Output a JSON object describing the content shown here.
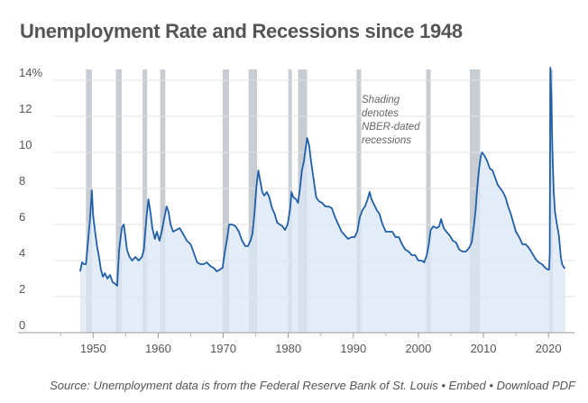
{
  "chart_data": {
    "type": "area",
    "title": "Unemployment Rate and Recessions since 1948",
    "xlabel": "",
    "ylabel": "",
    "xlim": [
      1944,
      2024
    ],
    "ylim": [
      0,
      14.6
    ],
    "x_ticks": [
      1950,
      1960,
      1970,
      1980,
      1990,
      2000,
      2010,
      2020
    ],
    "y_ticks": [
      {
        "value": 0,
        "label": "0"
      },
      {
        "value": 2,
        "label": "2"
      },
      {
        "value": 4,
        "label": "4"
      },
      {
        "value": 6,
        "label": "6"
      },
      {
        "value": 8,
        "label": "8"
      },
      {
        "value": 10,
        "label": "10"
      },
      {
        "value": 12,
        "label": "12"
      },
      {
        "value": 14,
        "label": "14%"
      }
    ],
    "grid": "horizontal",
    "series": [
      {
        "color": "#1f5fa8",
        "fill": "#dbe7f4",
        "points": [
          [
            1948.0,
            3.4
          ],
          [
            1948.3,
            3.9
          ],
          [
            1948.6,
            3.8
          ],
          [
            1948.9,
            3.8
          ],
          [
            1949.2,
            5.0
          ],
          [
            1949.5,
            6.2
          ],
          [
            1949.8,
            7.9
          ],
          [
            1950.0,
            6.5
          ],
          [
            1950.3,
            5.6
          ],
          [
            1950.6,
            4.8
          ],
          [
            1950.9,
            4.2
          ],
          [
            1951.2,
            3.5
          ],
          [
            1951.5,
            3.1
          ],
          [
            1951.8,
            3.3
          ],
          [
            1952.2,
            3.0
          ],
          [
            1952.6,
            3.2
          ],
          [
            1953.0,
            2.8
          ],
          [
            1953.4,
            2.7
          ],
          [
            1953.7,
            2.6
          ],
          [
            1954.0,
            4.6
          ],
          [
            1954.4,
            5.8
          ],
          [
            1954.7,
            6.0
          ],
          [
            1954.9,
            5.5
          ],
          [
            1955.2,
            4.6
          ],
          [
            1955.6,
            4.2
          ],
          [
            1956.0,
            4.0
          ],
          [
            1956.5,
            4.2
          ],
          [
            1957.0,
            4.0
          ],
          [
            1957.5,
            4.2
          ],
          [
            1957.8,
            4.6
          ],
          [
            1958.2,
            6.4
          ],
          [
            1958.5,
            7.4
          ],
          [
            1958.8,
            6.7
          ],
          [
            1959.1,
            5.8
          ],
          [
            1959.5,
            5.2
          ],
          [
            1959.8,
            5.6
          ],
          [
            1960.2,
            5.1
          ],
          [
            1960.6,
            5.7
          ],
          [
            1960.9,
            6.3
          ],
          [
            1961.3,
            7.0
          ],
          [
            1961.6,
            6.7
          ],
          [
            1961.9,
            6.0
          ],
          [
            1962.3,
            5.6
          ],
          [
            1962.8,
            5.7
          ],
          [
            1963.3,
            5.8
          ],
          [
            1963.8,
            5.5
          ],
          [
            1964.4,
            5.1
          ],
          [
            1965.0,
            4.9
          ],
          [
            1965.5,
            4.4
          ],
          [
            1966.0,
            3.9
          ],
          [
            1966.5,
            3.8
          ],
          [
            1967.0,
            3.8
          ],
          [
            1967.5,
            3.9
          ],
          [
            1968.0,
            3.7
          ],
          [
            1968.5,
            3.6
          ],
          [
            1969.0,
            3.4
          ],
          [
            1969.5,
            3.5
          ],
          [
            1969.9,
            3.6
          ],
          [
            1970.3,
            4.6
          ],
          [
            1970.6,
            5.2
          ],
          [
            1970.9,
            6.0
          ],
          [
            1971.4,
            6.0
          ],
          [
            1971.9,
            5.9
          ],
          [
            1972.4,
            5.6
          ],
          [
            1972.9,
            5.1
          ],
          [
            1973.4,
            4.8
          ],
          [
            1973.8,
            4.8
          ],
          [
            1974.2,
            5.1
          ],
          [
            1974.5,
            5.5
          ],
          [
            1974.8,
            6.6
          ],
          [
            1975.1,
            8.1
          ],
          [
            1975.4,
            9.0
          ],
          [
            1975.7,
            8.4
          ],
          [
            1976.0,
            7.8
          ],
          [
            1976.3,
            7.6
          ],
          [
            1976.7,
            7.8
          ],
          [
            1977.1,
            7.5
          ],
          [
            1977.5,
            6.9
          ],
          [
            1977.9,
            6.6
          ],
          [
            1978.3,
            6.1
          ],
          [
            1978.7,
            6.0
          ],
          [
            1979.1,
            5.9
          ],
          [
            1979.5,
            5.7
          ],
          [
            1979.9,
            6.0
          ],
          [
            1980.3,
            6.9
          ],
          [
            1980.5,
            7.8
          ],
          [
            1980.8,
            7.5
          ],
          [
            1981.2,
            7.4
          ],
          [
            1981.5,
            7.2
          ],
          [
            1981.8,
            8.0
          ],
          [
            1982.1,
            9.0
          ],
          [
            1982.4,
            9.5
          ],
          [
            1982.7,
            10.3
          ],
          [
            1982.9,
            10.8
          ],
          [
            1983.2,
            10.4
          ],
          [
            1983.5,
            9.5
          ],
          [
            1983.9,
            8.5
          ],
          [
            1984.3,
            7.5
          ],
          [
            1984.7,
            7.3
          ],
          [
            1985.2,
            7.2
          ],
          [
            1985.7,
            7.0
          ],
          [
            1986.2,
            7.0
          ],
          [
            1986.7,
            6.9
          ],
          [
            1987.2,
            6.4
          ],
          [
            1987.7,
            6.0
          ],
          [
            1988.2,
            5.6
          ],
          [
            1988.7,
            5.4
          ],
          [
            1989.2,
            5.2
          ],
          [
            1989.7,
            5.3
          ],
          [
            1990.2,
            5.3
          ],
          [
            1990.6,
            5.6
          ],
          [
            1991.0,
            6.4
          ],
          [
            1991.4,
            6.8
          ],
          [
            1991.8,
            7.0
          ],
          [
            1992.2,
            7.4
          ],
          [
            1992.5,
            7.8
          ],
          [
            1992.8,
            7.4
          ],
          [
            1993.2,
            7.1
          ],
          [
            1993.6,
            6.8
          ],
          [
            1994.0,
            6.6
          ],
          [
            1994.5,
            6.0
          ],
          [
            1995.0,
            5.6
          ],
          [
            1995.5,
            5.6
          ],
          [
            1996.0,
            5.6
          ],
          [
            1996.5,
            5.3
          ],
          [
            1997.0,
            5.3
          ],
          [
            1997.5,
            4.9
          ],
          [
            1998.0,
            4.6
          ],
          [
            1998.5,
            4.5
          ],
          [
            1999.0,
            4.3
          ],
          [
            1999.5,
            4.3
          ],
          [
            2000.0,
            4.0
          ],
          [
            2000.5,
            4.0
          ],
          [
            2000.9,
            3.9
          ],
          [
            2001.3,
            4.3
          ],
          [
            2001.6,
            4.9
          ],
          [
            2001.9,
            5.7
          ],
          [
            2002.3,
            5.9
          ],
          [
            2002.8,
            5.8
          ],
          [
            2003.2,
            5.9
          ],
          [
            2003.5,
            6.3
          ],
          [
            2003.9,
            5.8
          ],
          [
            2004.3,
            5.6
          ],
          [
            2004.8,
            5.4
          ],
          [
            2005.3,
            5.1
          ],
          [
            2005.8,
            5.0
          ],
          [
            2006.3,
            4.6
          ],
          [
            2006.8,
            4.5
          ],
          [
            2007.3,
            4.5
          ],
          [
            2007.8,
            4.7
          ],
          [
            2008.2,
            5.0
          ],
          [
            2008.5,
            5.8
          ],
          [
            2008.8,
            6.8
          ],
          [
            2009.0,
            7.8
          ],
          [
            2009.3,
            9.0
          ],
          [
            2009.6,
            9.8
          ],
          [
            2009.8,
            10.0
          ],
          [
            2010.2,
            9.8
          ],
          [
            2010.6,
            9.5
          ],
          [
            2011.0,
            9.1
          ],
          [
            2011.4,
            9.0
          ],
          [
            2011.8,
            8.6
          ],
          [
            2012.2,
            8.2
          ],
          [
            2012.6,
            8.0
          ],
          [
            2013.0,
            7.8
          ],
          [
            2013.4,
            7.5
          ],
          [
            2013.8,
            7.0
          ],
          [
            2014.2,
            6.6
          ],
          [
            2014.6,
            6.1
          ],
          [
            2015.0,
            5.6
          ],
          [
            2015.5,
            5.3
          ],
          [
            2016.0,
            4.9
          ],
          [
            2016.5,
            4.9
          ],
          [
            2017.0,
            4.7
          ],
          [
            2017.5,
            4.4
          ],
          [
            2018.0,
            4.1
          ],
          [
            2018.5,
            3.9
          ],
          [
            2019.0,
            3.8
          ],
          [
            2019.5,
            3.6
          ],
          [
            2019.9,
            3.5
          ],
          [
            2020.1,
            3.5
          ],
          [
            2020.2,
            4.4
          ],
          [
            2020.3,
            14.7
          ],
          [
            2020.45,
            13.0
          ],
          [
            2020.6,
            10.2
          ],
          [
            2020.8,
            7.9
          ],
          [
            2021.0,
            6.7
          ],
          [
            2021.3,
            6.0
          ],
          [
            2021.6,
            5.4
          ],
          [
            2021.9,
            4.2
          ],
          [
            2022.1,
            3.8
          ],
          [
            2022.4,
            3.6
          ],
          [
            2022.6,
            3.6
          ]
        ]
      }
    ],
    "recessions": [
      [
        1948.9,
        1949.8
      ],
      [
        1953.5,
        1954.4
      ],
      [
        1957.6,
        1958.3
      ],
      [
        1960.3,
        1961.1
      ],
      [
        1969.9,
        1970.9
      ],
      [
        1973.9,
        1975.2
      ],
      [
        1980.0,
        1980.5
      ],
      [
        1981.5,
        1982.9
      ],
      [
        1990.5,
        1991.2
      ],
      [
        2001.2,
        2001.9
      ],
      [
        2007.9,
        2009.5
      ],
      [
        2020.1,
        2020.3
      ]
    ],
    "annotation": {
      "lines": [
        "Shading",
        "denotes",
        "NBER-dated",
        "recessions"
      ]
    }
  },
  "source": {
    "text": "Source: Unemployment data is from the Federal Reserve Bank of St. Louis",
    "separator": "•",
    "embed_label": "Embed",
    "download_label": "Download PDF"
  }
}
